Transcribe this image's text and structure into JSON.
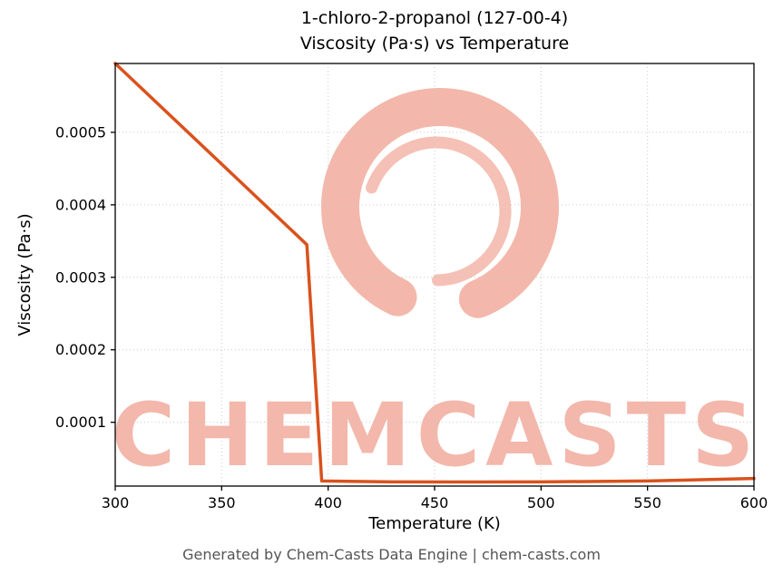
{
  "figure": {
    "title_line1": "1-chloro-2-propanol (127-00-4)",
    "title_line2": "Viscosity (Pa·s) vs Temperature",
    "xlabel": "Temperature (K)",
    "ylabel": "Viscosity (Pa·s)",
    "footer": "Generated by Chem-Casts Data Engine | chem-casts.com",
    "watermark_text": "CHEMCASTS"
  },
  "colors": {
    "line": "#d9521d",
    "watermark": "#f2b0a2",
    "grid": "#c9c9c9",
    "axis": "#000000",
    "footer_text": "#555555"
  },
  "chart_data": {
    "type": "line",
    "title": "1-chloro-2-propanol (127-00-4) — Viscosity (Pa·s) vs Temperature",
    "xlabel": "Temperature (K)",
    "ylabel": "Viscosity (Pa·s)",
    "xlim": [
      300,
      600
    ],
    "ylim": [
      1.2e-05,
      0.000595
    ],
    "xticks": [
      300,
      350,
      400,
      450,
      500,
      550,
      600
    ],
    "xtick_labels": [
      "300",
      "350",
      "400",
      "450",
      "500",
      "550",
      "600"
    ],
    "yticks": [
      0.0001,
      0.0002,
      0.0003,
      0.0004,
      0.0005
    ],
    "ytick_labels": [
      "0.0001",
      "0.0002",
      "0.0003",
      "0.0004",
      "0.0005"
    ],
    "grid": true,
    "legend": "none",
    "series": [
      {
        "name": "Viscosity (Pa·s)",
        "x": [
          300,
          390,
          397,
          430,
          470,
          500,
          550,
          600
        ],
        "y": [
          0.000595,
          0.000345,
          1.9e-05,
          1.78e-05,
          1.76e-05,
          1.78e-05,
          1.9e-05,
          2.25e-05
        ]
      }
    ]
  }
}
